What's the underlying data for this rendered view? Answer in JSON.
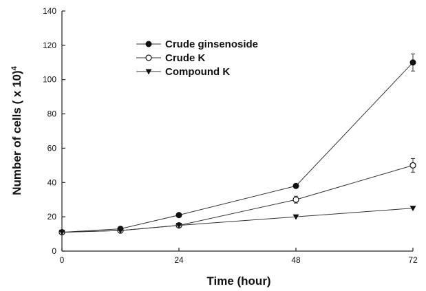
{
  "chart_data": {
    "type": "line",
    "title": "",
    "xlabel": "Time (hour)",
    "ylabel": "Number of cells ( x 10)",
    "ylabel_superscript": "4",
    "x": [
      0,
      12,
      24,
      48,
      72
    ],
    "xticks": [
      0,
      24,
      48,
      72
    ],
    "yticks": [
      0,
      20,
      40,
      60,
      80,
      100,
      120,
      140
    ],
    "xlim": [
      0,
      72
    ],
    "ylim": [
      0,
      140
    ],
    "grid": false,
    "legend_position": "top-left",
    "series": [
      {
        "name": "Crude ginsenoside",
        "marker": "filled-circle",
        "values": [
          11,
          13,
          21,
          38,
          110
        ],
        "error": [
          0,
          0,
          0,
          0,
          5
        ]
      },
      {
        "name": "Crude K",
        "marker": "open-circle",
        "values": [
          11,
          12,
          15,
          30,
          50
        ],
        "error": [
          0,
          0,
          0,
          2,
          4
        ]
      },
      {
        "name": "Compound K",
        "marker": "filled-triangle-down",
        "values": [
          11,
          12,
          15,
          20,
          25
        ],
        "error": [
          0,
          0,
          0,
          0,
          0
        ]
      }
    ]
  }
}
